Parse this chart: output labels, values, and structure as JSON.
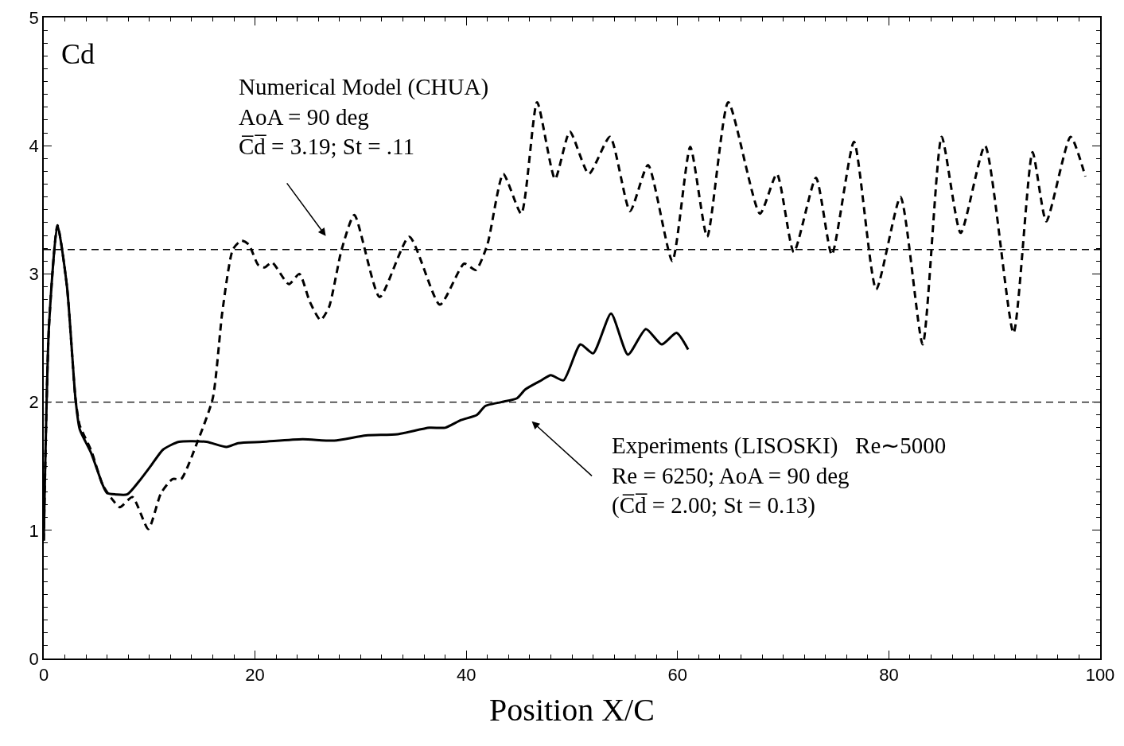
{
  "chart_data": {
    "type": "line",
    "ylabel": "Cd",
    "xlabel": "Position X/C",
    "xlim": [
      0,
      100
    ],
    "xticks": [
      0,
      20,
      40,
      60,
      80,
      100
    ],
    "ylim": [
      0,
      5
    ],
    "yticks": [
      0,
      1,
      2,
      3,
      4,
      5
    ],
    "grid": false,
    "marker": "none",
    "series": [
      {
        "color": "#000000",
        "line_style": "solid",
        "x": [
          0,
          0.5,
          1.3,
          2.2,
          3,
          3.4,
          4.5,
          5.6,
          6,
          6.8,
          7.9,
          9,
          10.2,
          11.3,
          12.8,
          15.4,
          17.3,
          18.4,
          20.7,
          24.5,
          27.5,
          30.5,
          33.5,
          36.5,
          38,
          39.5,
          41,
          41.8,
          43.3,
          44.8,
          45.6,
          47.1,
          48,
          49.2,
          50.8,
          52,
          53.7,
          55.3,
          57,
          58.5,
          59.9,
          61
        ],
        "values": [
          0.92,
          2.6,
          3.38,
          2.9,
          2.03,
          1.79,
          1.6,
          1.35,
          1.29,
          1.28,
          1.28,
          1.38,
          1.51,
          1.63,
          1.69,
          1.69,
          1.65,
          1.68,
          1.69,
          1.71,
          1.7,
          1.74,
          1.75,
          1.8,
          1.8,
          1.86,
          1.9,
          1.97,
          2.0,
          2.03,
          2.1,
          2.17,
          2.21,
          2.17,
          2.45,
          2.38,
          2.69,
          2.37,
          2.57,
          2.45,
          2.54,
          2.41
        ]
      },
      {
        "color": "#000000",
        "line_style": "dashed",
        "x": [
          0,
          0.5,
          1.3,
          2.2,
          3,
          3.4,
          4.5,
          5.6,
          6.5,
          7.2,
          8.4,
          9.9,
          11.1,
          12.2,
          13,
          14.5,
          16,
          16.9,
          17.9,
          18.7,
          19.4,
          20.3,
          20.9,
          21.6,
          23.2,
          24.2,
          25.2,
          26.2,
          27,
          28.2,
          29.4,
          31.8,
          34.6,
          37.5,
          39.8,
          40.9,
          42,
          43.5,
          45.2,
          46.7,
          48.4,
          49.8,
          51.6,
          53.6,
          55.5,
          57.2,
          59.5,
          61.2,
          62.8,
          64.8,
          67.8,
          69.4,
          71,
          73.1,
          74.6,
          76.7,
          78.8,
          81.1,
          83.2,
          85,
          86.8,
          89.1,
          91.8,
          93.6,
          94.9,
          97.2,
          98.6
        ],
        "values": [
          0.92,
          2.6,
          3.38,
          2.9,
          2.03,
          1.82,
          1.62,
          1.35,
          1.24,
          1.18,
          1.26,
          1.01,
          1.29,
          1.4,
          1.4,
          1.68,
          2.03,
          2.7,
          3.19,
          3.26,
          3.23,
          3.07,
          3.05,
          3.09,
          2.92,
          3.0,
          2.78,
          2.64,
          2.74,
          3.19,
          3.46,
          2.82,
          3.29,
          2.76,
          3.08,
          3.03,
          3.23,
          3.78,
          3.47,
          4.34,
          3.74,
          4.11,
          3.78,
          4.07,
          3.49,
          3.85,
          3.1,
          3.99,
          3.29,
          4.34,
          3.47,
          3.78,
          3.17,
          3.75,
          3.15,
          4.03,
          2.88,
          3.6,
          2.45,
          4.07,
          3.32,
          4.0,
          2.54,
          3.95,
          3.41,
          4.07,
          3.76
        ]
      }
    ],
    "ref_lines": [
      {
        "axis": "y",
        "value": 3.19,
        "color": "#000000",
        "line_style": "dashed"
      },
      {
        "axis": "y",
        "value": 2.0,
        "color": "#000000",
        "line_style": "dashed"
      }
    ],
    "annotations": [
      "Numerical Model (CHUA)\nAoA = 90 deg\nC̅d̅ = 3.19; St = .11",
      "Experiments (LISOSKI)   Re∼5000\nRe = 6250; AoA = 90 deg\n(C̅d̅ = 2.00; St = 0.13)"
    ]
  }
}
